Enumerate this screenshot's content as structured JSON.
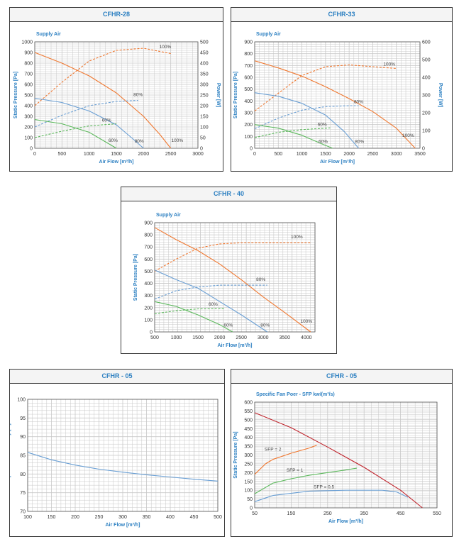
{
  "colors": {
    "orange": "#f07830",
    "blue": "#6a9fd4",
    "green": "#5cb85c",
    "red": "#c0242c",
    "title": "#2b7fc1",
    "grid": "#c8c8c8"
  },
  "chart_data": [
    {
      "type": "line",
      "title": "CFHR-28",
      "subtitle": "Supply Air",
      "xlabel": "Air Flow [m³/h]",
      "ylabel": "Static Pressure [Pa]",
      "y2label": "Power [W]",
      "xlim": [
        0,
        3000
      ],
      "ylim": [
        0,
        1000
      ],
      "y2lim": [
        0,
        500
      ],
      "xticks": [
        0,
        500,
        1000,
        1500,
        2000,
        2500,
        3000
      ],
      "yticks": [
        0,
        100,
        200,
        300,
        400,
        500,
        600,
        700,
        800,
        900,
        1000
      ],
      "y2ticks": [
        0,
        50,
        100,
        150,
        200,
        250,
        300,
        350,
        400,
        450,
        500
      ],
      "series": [
        {
          "name": "100%",
          "color": "orange",
          "dashed": false,
          "axis": "y",
          "x": [
            0,
            500,
            1000,
            1500,
            2000,
            2300,
            2500
          ],
          "y": [
            900,
            800,
            680,
            520,
            300,
            130,
            0
          ]
        },
        {
          "name": "100%",
          "color": "orange",
          "dashed": true,
          "axis": "y2",
          "x": [
            0,
            500,
            1000,
            1500,
            2000,
            2500
          ],
          "y": [
            200,
            310,
            410,
            460,
            470,
            445
          ]
        },
        {
          "name": "80%",
          "color": "blue",
          "dashed": false,
          "axis": "y",
          "x": [
            0,
            500,
            1000,
            1500,
            1800,
            2000
          ],
          "y": [
            470,
            430,
            350,
            220,
            90,
            0
          ]
        },
        {
          "name": "80%",
          "color": "blue",
          "dashed": true,
          "axis": "y2",
          "x": [
            0,
            500,
            1000,
            1500,
            1900
          ],
          "y": [
            100,
            155,
            200,
            220,
            225
          ]
        },
        {
          "name": "60%",
          "color": "green",
          "dashed": false,
          "axis": "y",
          "x": [
            0,
            500,
            1000,
            1300,
            1500
          ],
          "y": [
            270,
            230,
            150,
            60,
            0
          ]
        },
        {
          "name": "60%",
          "color": "green",
          "dashed": true,
          "axis": "y2",
          "x": [
            0,
            500,
            1000,
            1500
          ],
          "y": [
            50,
            80,
            105,
            115
          ]
        }
      ],
      "annotations": [
        {
          "text": "100%",
          "x": 2400,
          "y": 940
        },
        {
          "text": "80%",
          "x": 1900,
          "y": 490
        },
        {
          "text": "60%",
          "x": 1320,
          "y": 250
        },
        {
          "text": "100%",
          "x": 2620,
          "y": 60
        },
        {
          "text": "80%",
          "x": 1920,
          "y": 55
        },
        {
          "text": "60%",
          "x": 1440,
          "y": 60
        }
      ]
    },
    {
      "type": "line",
      "title": "CFHR-33",
      "subtitle": "Supply Air",
      "xlabel": "Air Flow [m³/h]",
      "ylabel": "Static Pressure [Pa]",
      "y2label": "Power [W]",
      "xlim": [
        0,
        3500
      ],
      "ylim": [
        0,
        900
      ],
      "y2lim": [
        0,
        600
      ],
      "xticks": [
        0,
        500,
        1000,
        1500,
        2000,
        2500,
        3000,
        3500
      ],
      "yticks": [
        0,
        100,
        200,
        300,
        400,
        500,
        600,
        700,
        800,
        900
      ],
      "y2ticks": [
        0,
        100,
        200,
        300,
        400,
        500,
        600
      ],
      "series": [
        {
          "name": "100%",
          "color": "orange",
          "dashed": false,
          "axis": "y",
          "x": [
            0,
            500,
            1000,
            1500,
            2000,
            2500,
            3000,
            3400
          ],
          "y": [
            740,
            680,
            610,
            520,
            420,
            310,
            170,
            0
          ]
        },
        {
          "name": "100%",
          "color": "orange",
          "dashed": true,
          "axis": "y2",
          "x": [
            0,
            500,
            1000,
            1500,
            2000,
            2500,
            3000
          ],
          "y": [
            210,
            310,
            410,
            460,
            470,
            460,
            450
          ]
        },
        {
          "name": "80%",
          "color": "blue",
          "dashed": false,
          "axis": "y",
          "x": [
            0,
            500,
            1000,
            1500,
            1900,
            2200
          ],
          "y": [
            470,
            440,
            380,
            280,
            140,
            0
          ]
        },
        {
          "name": "80%",
          "color": "blue",
          "dashed": true,
          "axis": "y2",
          "x": [
            0,
            500,
            1000,
            1500,
            2000,
            2200
          ],
          "y": [
            110,
            170,
            215,
            235,
            240,
            240
          ]
        },
        {
          "name": "60%",
          "color": "green",
          "dashed": false,
          "axis": "y",
          "x": [
            0,
            500,
            1000,
            1400,
            1650
          ],
          "y": [
            200,
            170,
            110,
            40,
            0
          ]
        },
        {
          "name": "60%",
          "color": "green",
          "dashed": true,
          "axis": "y2",
          "x": [
            0,
            500,
            1000,
            1600
          ],
          "y": [
            60,
            90,
            105,
            115
          ]
        }
      ],
      "annotations": [
        {
          "text": "100%",
          "x": 2850,
          "y": 700
        },
        {
          "text": "80%",
          "x": 2200,
          "y": 380
        },
        {
          "text": "60%",
          "x": 1430,
          "y": 190
        },
        {
          "text": "100%",
          "x": 3250,
          "y": 95
        },
        {
          "text": "80%",
          "x": 2220,
          "y": 45
        },
        {
          "text": "60%",
          "x": 1450,
          "y": 45
        }
      ]
    },
    {
      "type": "line",
      "title": "CFHR - 40",
      "subtitle": "Supply Air",
      "xlabel": "Air Flow [m³/h]",
      "ylabel": "Static Pressure [Pa]",
      "xlim": [
        500,
        4200
      ],
      "ylim": [
        0,
        900
      ],
      "xticks": [
        500,
        1000,
        1500,
        2000,
        2500,
        3000,
        3500,
        4000
      ],
      "yticks": [
        0,
        100,
        200,
        300,
        400,
        500,
        600,
        700,
        800,
        900
      ],
      "series": [
        {
          "name": "100%",
          "color": "orange",
          "dashed": false,
          "axis": "y",
          "x": [
            500,
            1000,
            1500,
            2000,
            2500,
            3000,
            3500,
            4100
          ],
          "y": [
            860,
            760,
            670,
            560,
            430,
            290,
            160,
            0
          ]
        },
        {
          "name": "100%",
          "color": "orange",
          "dashed": true,
          "axis": "y",
          "x": [
            500,
            1000,
            1500,
            2000,
            2500,
            3000,
            3500,
            4100
          ],
          "y": [
            500,
            600,
            690,
            725,
            735,
            735,
            735,
            735
          ]
        },
        {
          "name": "80%",
          "color": "blue",
          "dashed": false,
          "axis": "y",
          "x": [
            500,
            1000,
            1500,
            2000,
            2500,
            3100
          ],
          "y": [
            510,
            430,
            360,
            250,
            140,
            0
          ]
        },
        {
          "name": "80%",
          "color": "blue",
          "dashed": true,
          "axis": "y",
          "x": [
            500,
            1000,
            1500,
            2000,
            2500,
            3100
          ],
          "y": [
            270,
            340,
            370,
            385,
            385,
            385
          ]
        },
        {
          "name": "60%",
          "color": "green",
          "dashed": false,
          "axis": "y",
          "x": [
            500,
            1000,
            1500,
            2000,
            2300
          ],
          "y": [
            250,
            210,
            140,
            60,
            0
          ]
        },
        {
          "name": "60%",
          "color": "green",
          "dashed": true,
          "axis": "y",
          "x": [
            500,
            1000,
            1500,
            2100
          ],
          "y": [
            150,
            175,
            190,
            195
          ]
        }
      ],
      "annotations": [
        {
          "text": "100%",
          "x": 3780,
          "y": 770
        },
        {
          "text": "80%",
          "x": 2950,
          "y": 420
        },
        {
          "text": "60%",
          "x": 1850,
          "y": 215
        },
        {
          "text": "100%",
          "x": 4000,
          "y": 75
        },
        {
          "text": "80%",
          "x": 3050,
          "y": 45
        },
        {
          "text": "60%",
          "x": 2200,
          "y": 45
        }
      ]
    },
    {
      "type": "line",
      "title": "CFHR - 05",
      "xlabel": "Air Flow [m³/h]",
      "ylabel": "Temperature Efficiency [%]",
      "xlim": [
        100,
        500
      ],
      "ylim": [
        70,
        100
      ],
      "xticks": [
        100,
        150,
        200,
        250,
        300,
        350,
        400,
        450,
        500
      ],
      "yticks": [
        70,
        75,
        80,
        85,
        90,
        95,
        100
      ],
      "series": [
        {
          "name": "",
          "color": "blue",
          "dashed": false,
          "axis": "y",
          "x": [
            100,
            150,
            200,
            250,
            300,
            350,
            400,
            450,
            500
          ],
          "y": [
            85.8,
            83.8,
            82.4,
            81.3,
            80.5,
            79.8,
            79.2,
            78.6,
            78.1
          ]
        }
      ],
      "annotations": []
    },
    {
      "type": "line",
      "title": "CFHR - 05",
      "subtitle": "Specific Fan Poer - SFP kw/(m³/s)",
      "xlabel": "Air Flow [m³/h]",
      "ylabel": "Static Pressure [Pa]",
      "xlim": [
        50,
        550
      ],
      "ylim": [
        0,
        600
      ],
      "xticks": [
        50,
        150,
        250,
        350,
        450,
        550
      ],
      "yticks": [
        0,
        50,
        100,
        150,
        200,
        250,
        300,
        350,
        400,
        450,
        500,
        550,
        600
      ],
      "series": [
        {
          "name": "",
          "color": "red",
          "dashed": false,
          "axis": "y",
          "x": [
            50,
            150,
            250,
            350,
            450,
            510
          ],
          "y": [
            540,
            455,
            345,
            230,
            100,
            0
          ]
        },
        {
          "name": "SFP = 2",
          "color": "orange",
          "dashed": false,
          "axis": "y",
          "x": [
            50,
            80,
            100,
            150,
            200,
            220
          ],
          "y": [
            190,
            250,
            275,
            310,
            340,
            355
          ]
        },
        {
          "name": "SFP = 1",
          "color": "green",
          "dashed": false,
          "axis": "y",
          "x": [
            50,
            100,
            150,
            200,
            250,
            300,
            330
          ],
          "y": [
            80,
            140,
            165,
            185,
            200,
            215,
            225
          ]
        },
        {
          "name": "SFP = 0,5",
          "color": "blue",
          "dashed": false,
          "axis": "y",
          "x": [
            50,
            100,
            200,
            300,
            400,
            440,
            470
          ],
          "y": [
            35,
            70,
            95,
            100,
            100,
            90,
            60
          ]
        }
      ],
      "annotations": [
        {
          "text": "SFP = 2",
          "x": 100,
          "y": 325
        },
        {
          "text": "SFP = 1",
          "x": 160,
          "y": 205
        },
        {
          "text": "SFP = 0,5",
          "x": 240,
          "y": 110
        }
      ]
    }
  ]
}
